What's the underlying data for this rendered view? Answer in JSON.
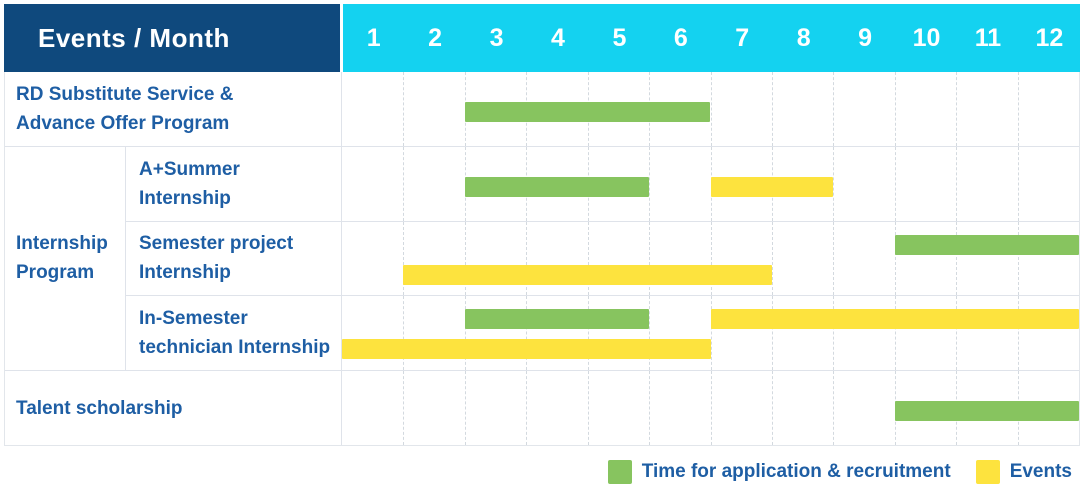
{
  "colors": {
    "header_bg": "#0f497d",
    "month_header_bg": "#14d2f0",
    "header_text": "#ffffff",
    "label_text": "#1e5ea4",
    "application_bar": "#87c45f",
    "events_bar": "#fde33e",
    "grid_line": "#dfe3ea"
  },
  "chart_data": {
    "type": "table",
    "title": "Events / Month",
    "x_axis_label": "Month",
    "x_ticks": [
      "1",
      "2",
      "3",
      "4",
      "5",
      "6",
      "7",
      "8",
      "9",
      "10",
      "11",
      "12"
    ],
    "x_range": [
      1,
      12
    ],
    "grid": true,
    "legend_position": "bottom-right",
    "groups": {
      "Internship Program": {
        "label_lines": [
          "Internship",
          "Program"
        ]
      }
    },
    "rows": [
      {
        "label": "RD Substitute Service & Advance Offer Program",
        "label_lines": [
          "RD Substitute Service &",
          "Advance Offer Program"
        ],
        "group": null,
        "bars": [
          {
            "kind": "application",
            "start_month": 3,
            "end_month": 6,
            "track": 1
          }
        ]
      },
      {
        "label": "A+Summer Internship",
        "label_lines": [
          "A+Summer",
          "Internship"
        ],
        "group": "Internship Program",
        "bars": [
          {
            "kind": "application",
            "start_month": 3,
            "end_month": 5,
            "track": 1
          },
          {
            "kind": "events",
            "start_month": 7,
            "end_month": 8,
            "track": 1
          }
        ]
      },
      {
        "label": "Semester project Internship",
        "label_lines": [
          "Semester project",
          "Internship"
        ],
        "group": "Internship Program",
        "bars": [
          {
            "kind": "application",
            "start_month": 10,
            "end_month": 12,
            "track": 1
          },
          {
            "kind": "events",
            "start_month": 2,
            "end_month": 7,
            "track": 2
          }
        ]
      },
      {
        "label": "In-Semester technician Internship",
        "label_lines": [
          "In-Semester",
          "technician Internship"
        ],
        "group": "Internship Program",
        "bars": [
          {
            "kind": "application",
            "start_month": 3,
            "end_month": 5,
            "track": 1
          },
          {
            "kind": "events",
            "start_month": 7,
            "end_month": 12,
            "track": 1
          },
          {
            "kind": "events",
            "start_month": 1,
            "end_month": 6,
            "track": 2
          }
        ]
      },
      {
        "label": "Talent scholarship",
        "label_lines": [
          "Talent scholarship"
        ],
        "group": null,
        "bars": [
          {
            "kind": "application",
            "start_month": 10,
            "end_month": 12,
            "track": 1
          }
        ]
      }
    ],
    "legend": [
      {
        "kind": "application",
        "label": "Time for application & recruitment",
        "color": "#87c45f"
      },
      {
        "kind": "events",
        "label": "Events",
        "color": "#fde33e"
      }
    ]
  }
}
